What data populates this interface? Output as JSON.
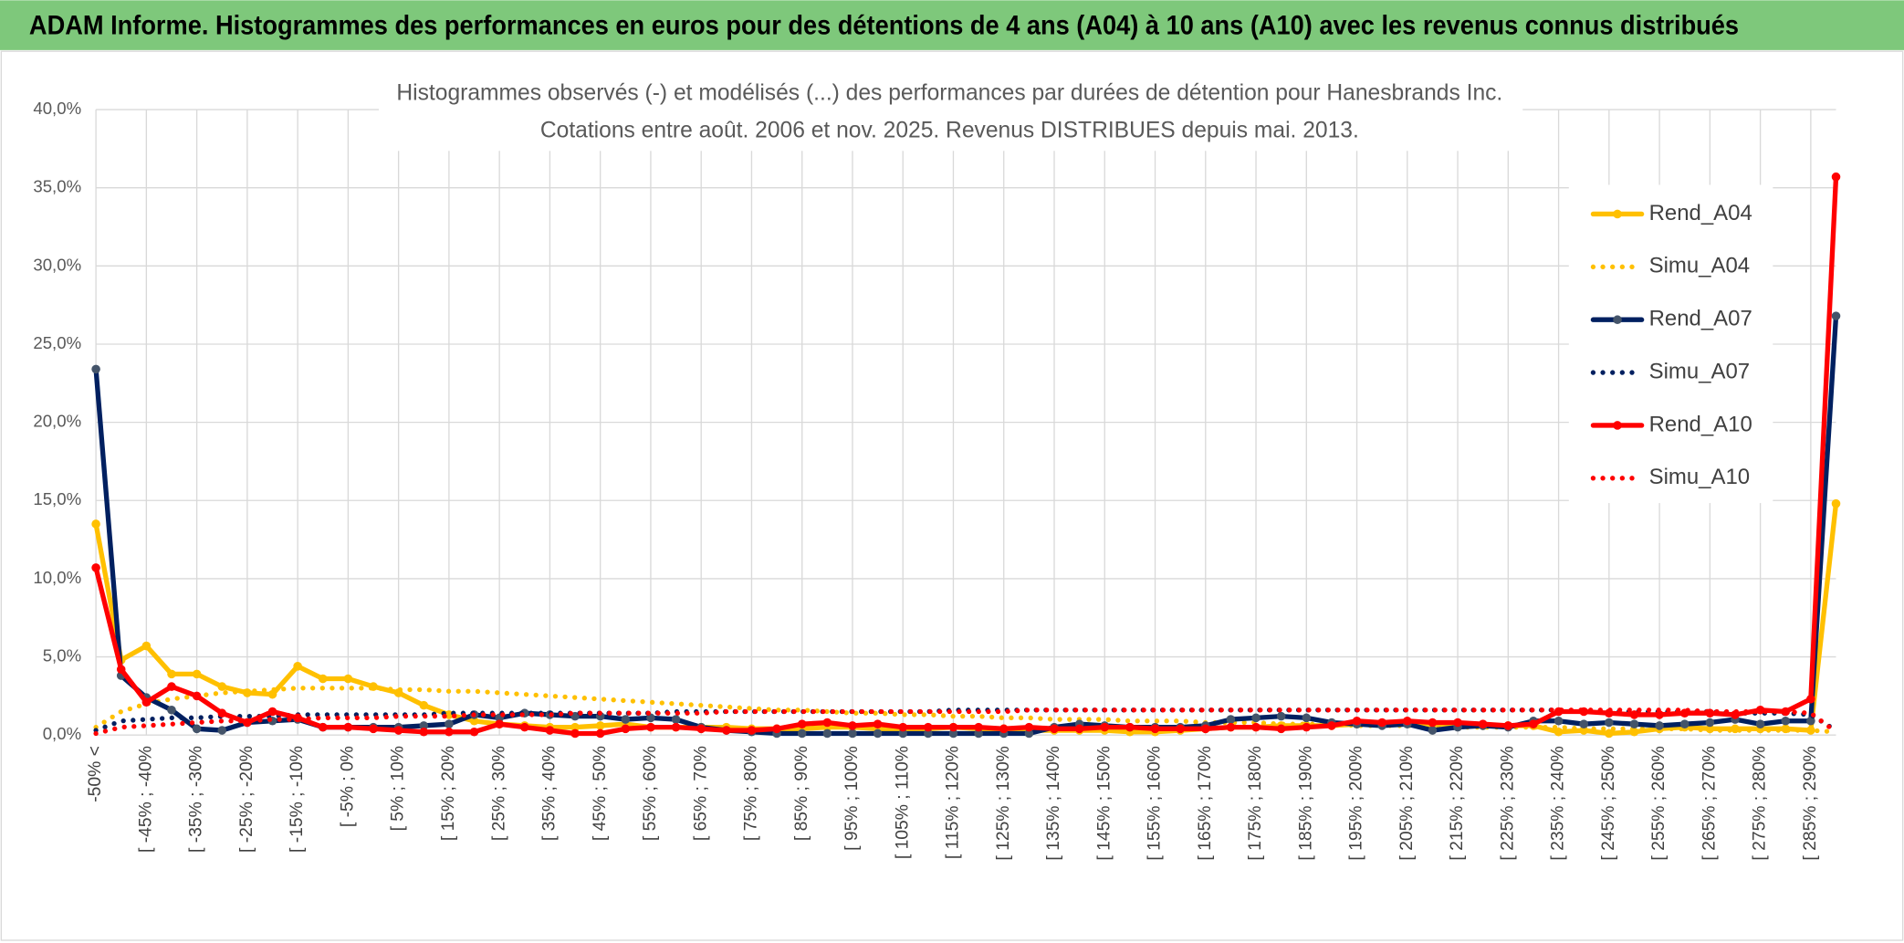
{
  "header": {
    "title": "ADAM Informe. Histogrammes des performances en euros pour des détentions de 4 ans (A04) à 10 ans (A10) avec les revenus connus distribués"
  },
  "chart_data": {
    "type": "line",
    "title": "Histogrammes observés (-) et modélisés (...) des performances par durées de détention pour Hanesbrands Inc.",
    "subtitle": "Cotations entre août. 2006 et nov. 2025. Revenus DISTRIBUES depuis mai. 2013.",
    "categories": [
      "-50% <",
      null,
      "[ -45% ; -40%",
      null,
      "[ -35% ; -30%",
      null,
      "[ -25% ; -20%",
      null,
      "[ -15% ; -10%",
      null,
      "[ -5% ; 0%",
      null,
      "[ 5% ; 10%",
      null,
      "[ 15% ; 20%",
      null,
      "[ 25% ; 30%",
      null,
      "[ 35% ; 40%",
      null,
      "[ 45% ; 50%",
      null,
      "[ 55% ; 60%",
      null,
      "[ 65% ; 70%",
      null,
      "[ 75% ; 80%",
      null,
      "[ 85% ; 90%",
      null,
      "[ 95% ; 100%",
      null,
      "[ 105% ; 110%",
      null,
      "[ 115% ; 120%",
      null,
      "[ 125% ; 130%",
      null,
      "[ 135% ; 140%",
      null,
      "[ 145% ; 150%",
      null,
      "[ 155% ; 160%",
      null,
      "[ 165% ; 170%",
      null,
      "[ 175% ; 180%",
      null,
      "[ 185% ; 190%",
      null,
      "[ 195% ; 200%",
      null,
      "[ 205% ; 210%",
      null,
      "[ 215% ; 220%",
      null,
      "[ 225% ; 230%",
      null,
      "[ 235% ; 240%",
      null,
      "[ 245% ; 250%",
      null,
      "[ 255% ; 260%",
      null,
      "[ 265% ; 270%",
      null,
      "[ 275% ; 280%",
      null,
      "[ 285% ; 290%",
      null
    ],
    "ylim": [
      0,
      40
    ],
    "yticks": [
      {
        "value": 0,
        "label": "0,0%"
      },
      {
        "value": 5,
        "label": "5,0%"
      },
      {
        "value": 10,
        "label": "10,0%"
      },
      {
        "value": 15,
        "label": "15,0%"
      },
      {
        "value": 20,
        "label": "20,0%"
      },
      {
        "value": 25,
        "label": "25,0%"
      },
      {
        "value": 30,
        "label": "30,0%"
      },
      {
        "value": 35,
        "label": "35,0%"
      },
      {
        "value": 40,
        "label": "40,0%"
      }
    ],
    "grid": true,
    "legend": "right",
    "series": [
      {
        "name": "Rend_A04",
        "color": "#ffc000",
        "style": "solid",
        "marker_color": "#ffc000",
        "values": [
          13.5,
          4.8,
          5.7,
          3.9,
          3.9,
          3.1,
          2.7,
          2.6,
          4.4,
          3.6,
          3.6,
          3.1,
          2.7,
          1.9,
          1.3,
          0.9,
          0.7,
          0.6,
          0.5,
          0.5,
          0.6,
          0.7,
          0.5,
          0.5,
          0.5,
          0.5,
          0.4,
          0.4,
          0.4,
          0.5,
          0.5,
          0.4,
          0.4,
          0.4,
          0.5,
          0.4,
          0.4,
          0.3,
          0.3,
          0.3,
          0.3,
          0.2,
          0.2,
          0.3,
          0.4,
          0.5,
          0.5,
          0.6,
          0.6,
          0.6,
          0.7,
          0.7,
          0.8,
          0.7,
          0.7,
          0.6,
          0.6,
          0.6,
          0.2,
          0.3,
          0.1,
          0.2,
          0.4,
          0.5,
          0.4,
          0.4,
          0.4,
          0.4,
          0.3,
          14.8
        ]
      },
      {
        "name": "Simu_A04",
        "color": "#ffc000",
        "style": "dotted",
        "values": [
          0.5,
          1.5,
          2.0,
          2.3,
          2.5,
          2.7,
          2.8,
          2.9,
          3.0,
          3.0,
          3.0,
          3.0,
          2.9,
          2.9,
          2.8,
          2.8,
          2.7,
          2.6,
          2.5,
          2.4,
          2.3,
          2.2,
          2.1,
          2.0,
          1.9,
          1.8,
          1.7,
          1.6,
          1.6,
          1.5,
          1.4,
          1.4,
          1.3,
          1.3,
          1.2,
          1.2,
          1.1,
          1.1,
          1.0,
          1.0,
          1.0,
          0.9,
          0.9,
          0.9,
          0.8,
          0.8,
          0.8,
          0.7,
          0.7,
          0.7,
          0.6,
          0.6,
          0.6,
          0.6,
          0.5,
          0.5,
          0.5,
          0.5,
          0.5,
          0.4,
          0.4,
          0.4,
          0.4,
          0.4,
          0.3,
          0.3,
          0.3,
          0.3,
          0.3,
          0.2
        ]
      },
      {
        "name": "Rend_A07",
        "color": "#002060",
        "style": "solid",
        "marker_color": "#44546a",
        "values": [
          23.4,
          3.8,
          2.4,
          1.6,
          0.4,
          0.3,
          0.8,
          0.9,
          1.0,
          0.5,
          0.5,
          0.5,
          0.5,
          0.6,
          0.7,
          1.3,
          1.1,
          1.4,
          1.3,
          1.2,
          1.2,
          1.0,
          1.1,
          1.0,
          0.5,
          0.3,
          0.2,
          0.1,
          0.1,
          0.1,
          0.1,
          0.1,
          0.1,
          0.1,
          0.1,
          0.1,
          0.1,
          0.1,
          0.5,
          0.7,
          0.6,
          0.5,
          0.5,
          0.5,
          0.6,
          1.0,
          1.1,
          1.2,
          1.1,
          0.8,
          0.7,
          0.6,
          0.7,
          0.3,
          0.5,
          0.6,
          0.5,
          0.9,
          0.9,
          0.7,
          0.8,
          0.7,
          0.6,
          0.7,
          0.8,
          1.0,
          0.7,
          0.9,
          0.9,
          26.8
        ]
      },
      {
        "name": "Simu_A07",
        "color": "#002060",
        "style": "dotted",
        "values": [
          0.3,
          0.9,
          1.0,
          1.1,
          1.1,
          1.2,
          1.2,
          1.2,
          1.3,
          1.3,
          1.3,
          1.3,
          1.3,
          1.3,
          1.4,
          1.4,
          1.4,
          1.4,
          1.4,
          1.4,
          1.4,
          1.4,
          1.4,
          1.5,
          1.5,
          1.5,
          1.5,
          1.5,
          1.5,
          1.5,
          1.5,
          1.5,
          1.5,
          1.5,
          1.6,
          1.6,
          1.6,
          1.6,
          1.6,
          1.6,
          1.6,
          1.6,
          1.6,
          1.6,
          1.6,
          1.6,
          1.6,
          1.6,
          1.6,
          1.6,
          1.6,
          1.6,
          1.6,
          1.6,
          1.6,
          1.6,
          1.6,
          1.6,
          1.6,
          1.5,
          1.5,
          1.5,
          1.5,
          1.5,
          1.5,
          1.4,
          1.4,
          1.4,
          1.3,
          0.3
        ]
      },
      {
        "name": "Rend_A10",
        "color": "#ff0000",
        "style": "solid",
        "marker_color": "#ff0000",
        "values": [
          10.7,
          4.2,
          2.1,
          3.1,
          2.5,
          1.4,
          0.8,
          1.5,
          1.1,
          0.5,
          0.5,
          0.4,
          0.3,
          0.2,
          0.2,
          0.2,
          0.7,
          0.5,
          0.3,
          0.1,
          0.1,
          0.4,
          0.5,
          0.5,
          0.4,
          0.3,
          0.3,
          0.4,
          0.7,
          0.8,
          0.6,
          0.7,
          0.5,
          0.5,
          0.5,
          0.5,
          0.4,
          0.5,
          0.4,
          0.4,
          0.5,
          0.5,
          0.4,
          0.4,
          0.4,
          0.5,
          0.5,
          0.4,
          0.5,
          0.6,
          0.9,
          0.8,
          0.9,
          0.8,
          0.8,
          0.7,
          0.6,
          0.7,
          1.5,
          1.5,
          1.4,
          1.3,
          1.3,
          1.4,
          1.4,
          1.3,
          1.6,
          1.5,
          2.3,
          35.7
        ]
      },
      {
        "name": "Simu_A10",
        "color": "#ff0000",
        "style": "dotted",
        "values": [
          0.1,
          0.5,
          0.6,
          0.7,
          0.8,
          0.9,
          0.9,
          1.0,
          1.0,
          1.1,
          1.1,
          1.1,
          1.2,
          1.2,
          1.2,
          1.3,
          1.3,
          1.3,
          1.3,
          1.4,
          1.4,
          1.4,
          1.4,
          1.4,
          1.4,
          1.5,
          1.5,
          1.5,
          1.5,
          1.5,
          1.5,
          1.5,
          1.5,
          1.5,
          1.5,
          1.5,
          1.5,
          1.6,
          1.6,
          1.6,
          1.6,
          1.6,
          1.6,
          1.6,
          1.6,
          1.6,
          1.6,
          1.6,
          1.6,
          1.6,
          1.6,
          1.6,
          1.6,
          1.6,
          1.6,
          1.6,
          1.6,
          1.6,
          1.6,
          1.6,
          1.6,
          1.6,
          1.6,
          1.6,
          1.5,
          1.5,
          1.5,
          1.5,
          1.4,
          0.2
        ]
      }
    ]
  }
}
